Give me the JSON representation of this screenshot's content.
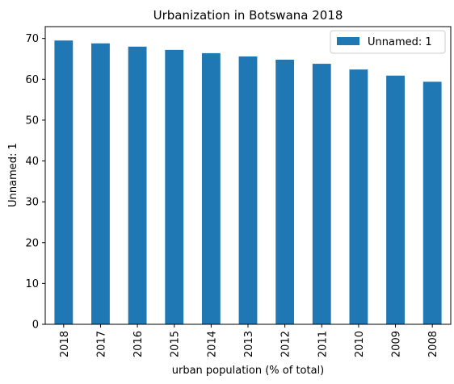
{
  "chart_data": {
    "type": "bar",
    "title": "Urbanization in Botswana 2018",
    "xlabel": "urban population (% of total)",
    "ylabel": "Unnamed: 1",
    "categories": [
      "2018",
      "2017",
      "2016",
      "2015",
      "2014",
      "2013",
      "2012",
      "2011",
      "2010",
      "2009",
      "2008"
    ],
    "series": [
      {
        "name": "Unnamed: 1",
        "color": "#1f77b4",
        "values": [
          69.5,
          68.8,
          68.0,
          67.2,
          66.4,
          65.6,
          64.8,
          63.8,
          62.4,
          60.9,
          59.4
        ]
      }
    ],
    "ylim": [
      0,
      72.9
    ],
    "yticks": [
      0,
      10,
      20,
      30,
      40,
      50,
      60,
      70
    ],
    "legend": "top-right",
    "grid": false
  }
}
